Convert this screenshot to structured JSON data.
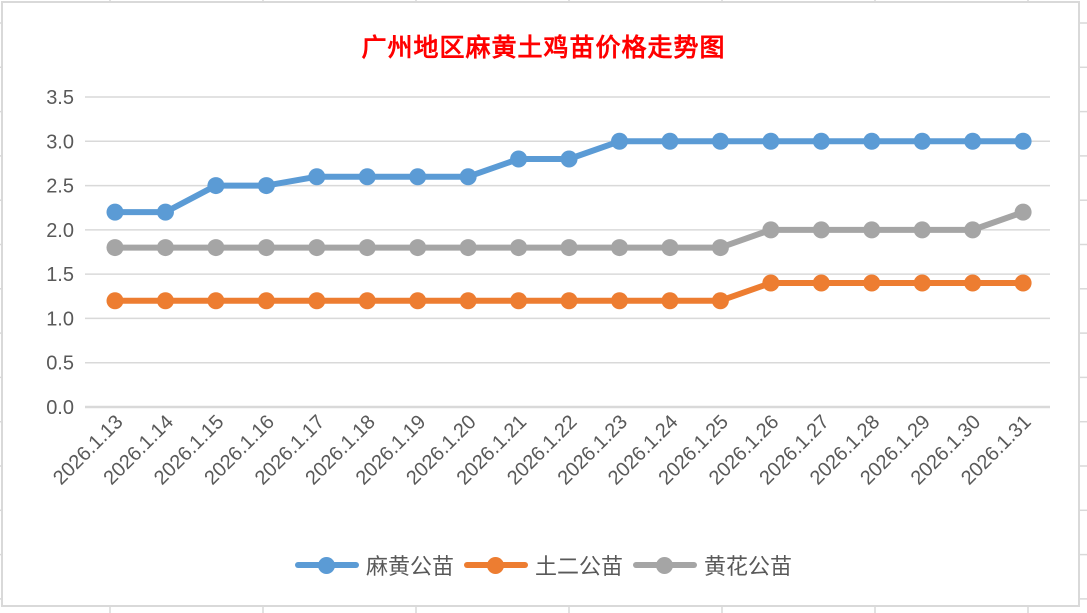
{
  "title": {
    "text": "广州地区麻黄土鸡苗价格走势图",
    "color": "#FF0000"
  },
  "chart_data": {
    "type": "line",
    "categories": [
      "2026.1.13",
      "2026.1.14",
      "2026.1.15",
      "2026.1.16",
      "2026.1.17",
      "2026.1.18",
      "2026.1.19",
      "2026.1.20",
      "2026.1.21",
      "2026.1.22",
      "2026.1.23",
      "2026.1.24",
      "2026.1.25",
      "2026.1.26",
      "2026.1.27",
      "2026.1.28",
      "2026.1.29",
      "2026.1.30",
      "2026.1.31"
    ],
    "series": [
      {
        "name": "麻黄公苗",
        "color": "#5B9BD5",
        "values": [
          2.2,
          2.2,
          2.5,
          2.5,
          2.6,
          2.6,
          2.6,
          2.6,
          2.8,
          2.8,
          3.0,
          3.0,
          3.0,
          3.0,
          3.0,
          3.0,
          3.0,
          3.0,
          3.0
        ]
      },
      {
        "name": "土二公苗",
        "color": "#ED7D31",
        "values": [
          1.2,
          1.2,
          1.2,
          1.2,
          1.2,
          1.2,
          1.2,
          1.2,
          1.2,
          1.2,
          1.2,
          1.2,
          1.2,
          1.4,
          1.4,
          1.4,
          1.4,
          1.4,
          1.4
        ]
      },
      {
        "name": "黄花公苗",
        "color": "#A5A5A5",
        "values": [
          1.8,
          1.8,
          1.8,
          1.8,
          1.8,
          1.8,
          1.8,
          1.8,
          1.8,
          1.8,
          1.8,
          1.8,
          1.8,
          2.0,
          2.0,
          2.0,
          2.0,
          2.0,
          2.2
        ]
      }
    ],
    "title": "广州地区麻黄土鸡苗价格走势图",
    "xlabel": "",
    "ylabel": "",
    "ylim": [
      0,
      3.5
    ],
    "ytick_step": 0.5,
    "ytick_labels": [
      "0.0",
      "0.5",
      "1.0",
      "1.5",
      "2.0",
      "2.5",
      "3.0",
      "3.5"
    ],
    "grid": true,
    "legend_position": "bottom",
    "x_labels_rotation_deg": 45,
    "axis_text_color": "#595959",
    "gridline_color": "#D9D9D9"
  }
}
